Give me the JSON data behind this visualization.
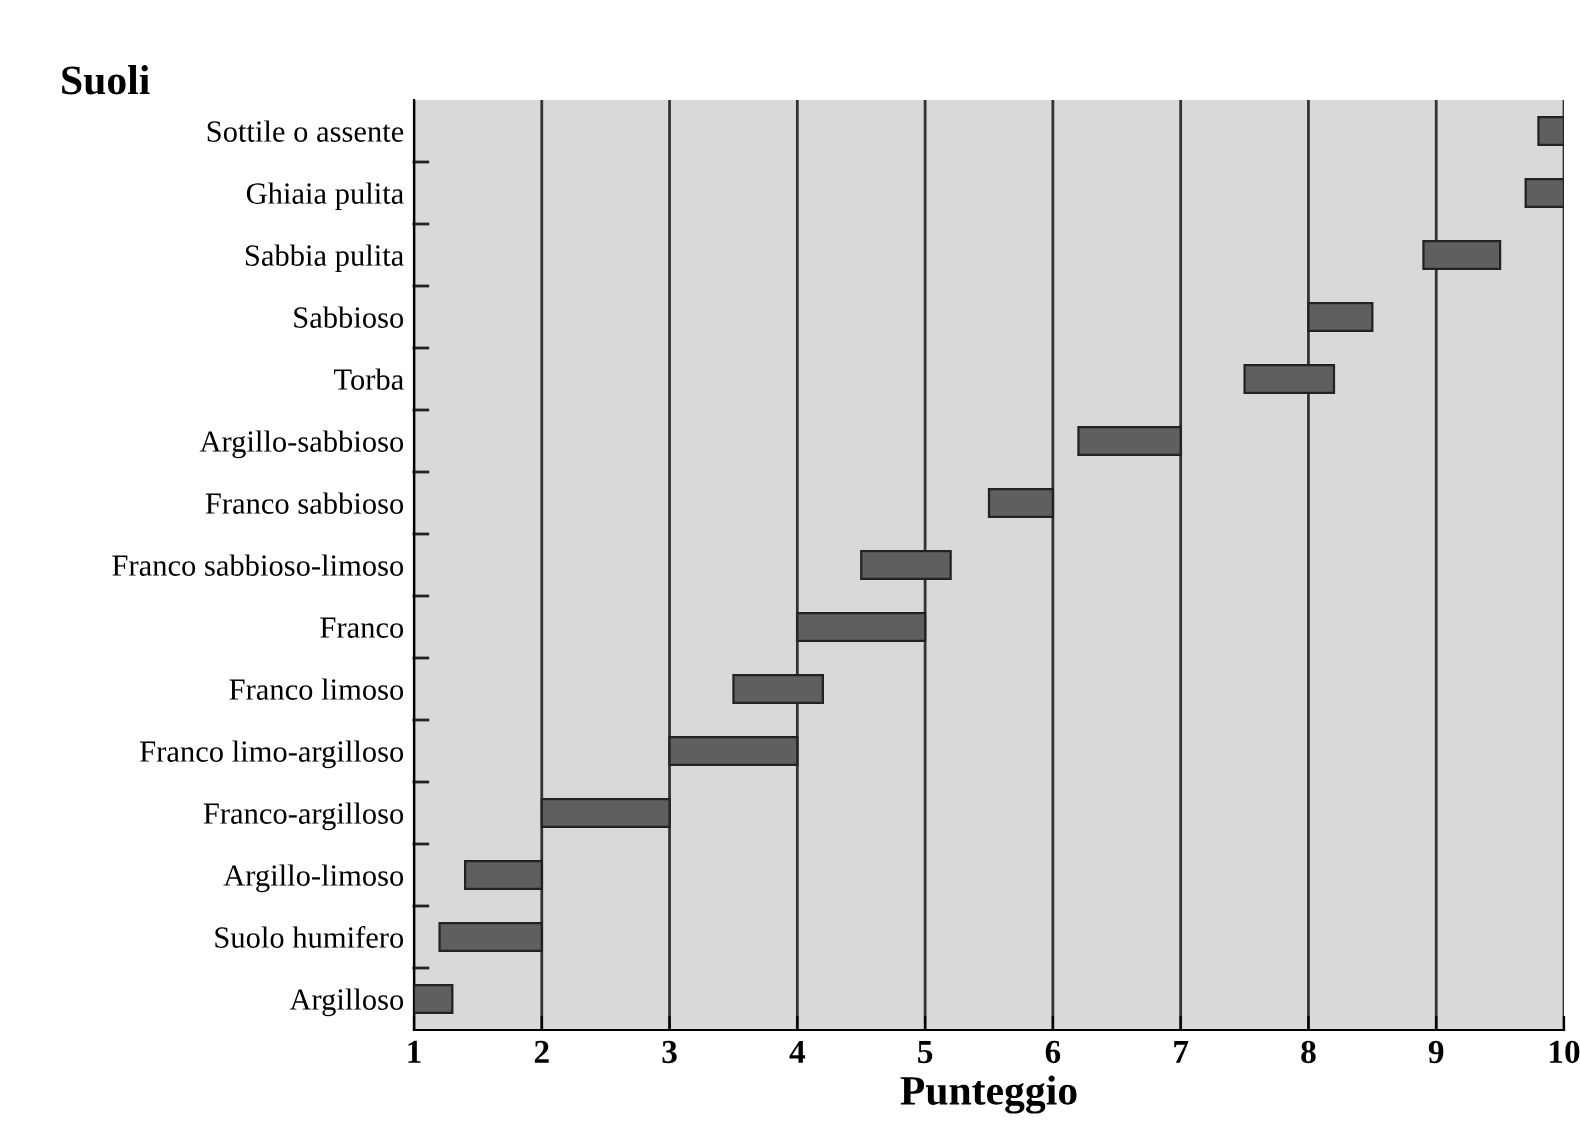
{
  "chart_data": {
    "type": "bar",
    "orientation": "horizontal",
    "title": "Suoli",
    "xlabel": "Punteggio",
    "categories": [
      "Sottile o assente",
      "Ghiaia pulita",
      "Sabbia pulita",
      "Sabbioso",
      "Torba",
      "Argillo-sabbioso",
      "Franco sabbioso",
      "Franco sabbioso-limoso",
      "Franco",
      "Franco limoso",
      "Franco limo-argilloso",
      "Franco-argilloso",
      "Argillo-limoso",
      "Suolo humifero",
      "Argilloso"
    ],
    "base": [
      9.8,
      9.7,
      8.9,
      8.0,
      7.5,
      6.2,
      5.5,
      4.5,
      4.0,
      3.5,
      3.0,
      2.0,
      1.4,
      1.2,
      1.0
    ],
    "values": [
      0.2,
      0.3,
      0.6,
      0.5,
      0.7,
      0.8,
      0.5,
      0.7,
      1.0,
      0.7,
      1.0,
      1.0,
      0.6,
      0.8,
      0.3
    ],
    "color": "#5f5f5f",
    "xlim": [
      1,
      10
    ],
    "xticks": [
      1,
      2,
      3,
      4,
      5,
      6,
      7,
      8,
      9,
      10
    ],
    "grid": "x"
  }
}
